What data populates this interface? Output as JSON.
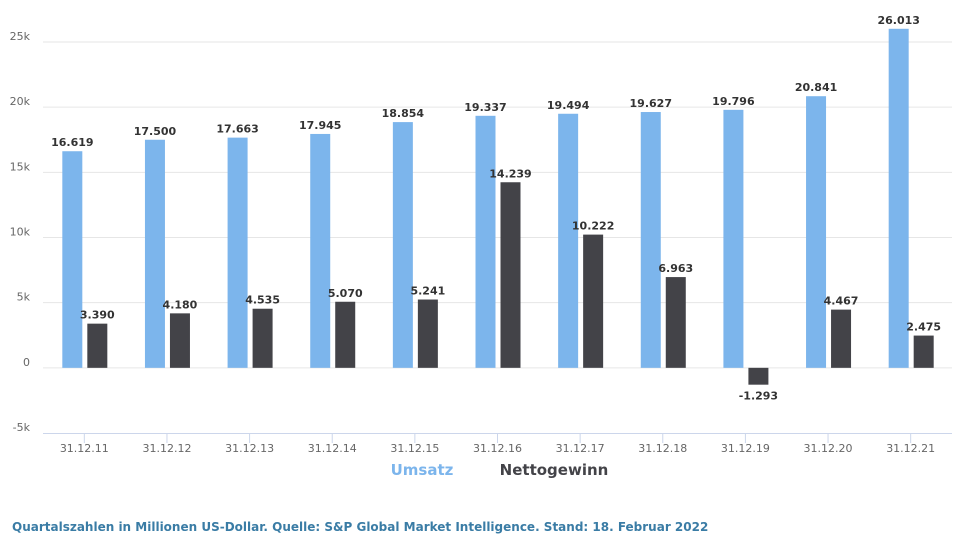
{
  "chart_data": {
    "type": "bar",
    "categories": [
      "31.12.11",
      "31.12.12",
      "31.12.13",
      "31.12.14",
      "31.12.15",
      "31.12.16",
      "31.12.17",
      "31.12.18",
      "31.12.19",
      "31.12.20",
      "31.12.21"
    ],
    "series": [
      {
        "name": "Umsatz",
        "color": "#7cb5ec",
        "values": [
          16619,
          17500,
          17663,
          17945,
          18854,
          19337,
          19494,
          19627,
          19796,
          20841,
          26013
        ],
        "labels": [
          "16.619",
          "17.500",
          "17.663",
          "17.945",
          "18.854",
          "19.337",
          "19.494",
          "19.627",
          "19.796",
          "20.841",
          "26.013"
        ]
      },
      {
        "name": "Nettogewinn",
        "color": "#434348",
        "values": [
          3390,
          4180,
          4535,
          5070,
          5241,
          14239,
          10222,
          6963,
          -1293,
          4467,
          2475
        ],
        "labels": [
          "3.390",
          "4.180",
          "4.535",
          "5.070",
          "5.241",
          "14.239",
          "10.222",
          "6.963",
          "-1.293",
          "4.467",
          "2.475"
        ]
      }
    ],
    "ylim": [
      -5000,
      25000
    ],
    "yticks": [
      -5000,
      0,
      5000,
      10000,
      15000,
      20000,
      25000
    ],
    "ytick_labels": [
      "-5k",
      "0",
      "5k",
      "10k",
      "15k",
      "20k",
      "25k"
    ],
    "legend_position": "bottom-center",
    "grid": true,
    "title": "",
    "xlabel": "",
    "ylabel": ""
  },
  "footer": "Quartalszahlen in Millionen US-Dollar. Quelle:  S&P Global Market Intelligence. Stand: 18. Februar 2022"
}
